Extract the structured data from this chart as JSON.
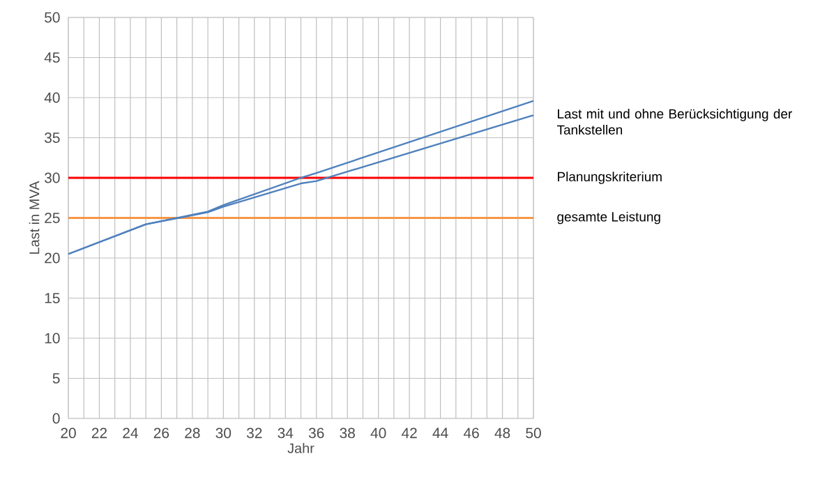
{
  "chart_data": {
    "type": "line",
    "xlabel": "Jahr",
    "ylabel": "Last in MVA",
    "x": [
      20,
      25,
      29,
      30,
      35,
      36,
      50
    ],
    "series": [
      {
        "color": "#4f81bd",
        "values": [
          20.5,
          24.2,
          25.8,
          26.6,
          30.0,
          30.6,
          39.6
        ]
      },
      {
        "color": "#4f81bd",
        "values": [
          20.5,
          24.2,
          25.7,
          26.4,
          29.3,
          29.6,
          37.8
        ]
      }
    ],
    "xlim": [
      20,
      50
    ],
    "ylim": [
      0,
      50
    ],
    "xticks": [
      20,
      {
        "value": 21,
        "label": null
      },
      22,
      {
        "value": 23,
        "label": null
      },
      24,
      {
        "value": 25,
        "label": null
      },
      26,
      {
        "value": 27,
        "label": null
      },
      28,
      {
        "value": 29,
        "label": null
      },
      30,
      {
        "value": 31,
        "label": null
      },
      32,
      {
        "value": 33,
        "label": null
      },
      34,
      {
        "value": 35,
        "label": null
      },
      36,
      {
        "value": 37,
        "label": null
      },
      38,
      {
        "value": 39,
        "label": null
      },
      40,
      {
        "value": 41,
        "label": null
      },
      42,
      {
        "value": 43,
        "label": null
      },
      44,
      {
        "value": 45,
        "label": null
      },
      46,
      {
        "value": 47,
        "label": null
      },
      48,
      {
        "value": 49,
        "label": null
      },
      50
    ],
    "yticks": [
      0,
      5,
      10,
      15,
      20,
      25,
      30,
      35,
      40,
      45,
      50
    ],
    "grid": true,
    "marker": "none",
    "line_style": "solid",
    "ref_lines": [
      {
        "axis": "y",
        "value": 30,
        "label": "Planungskriterium",
        "color": "#ff0000"
      },
      {
        "axis": "y",
        "value": 25,
        "label": "gesamte Leistung",
        "color": "#f79646"
      }
    ],
    "annotations": [
      "Last mit und ohne Berücksichtigung der Tankstellen"
    ]
  }
}
